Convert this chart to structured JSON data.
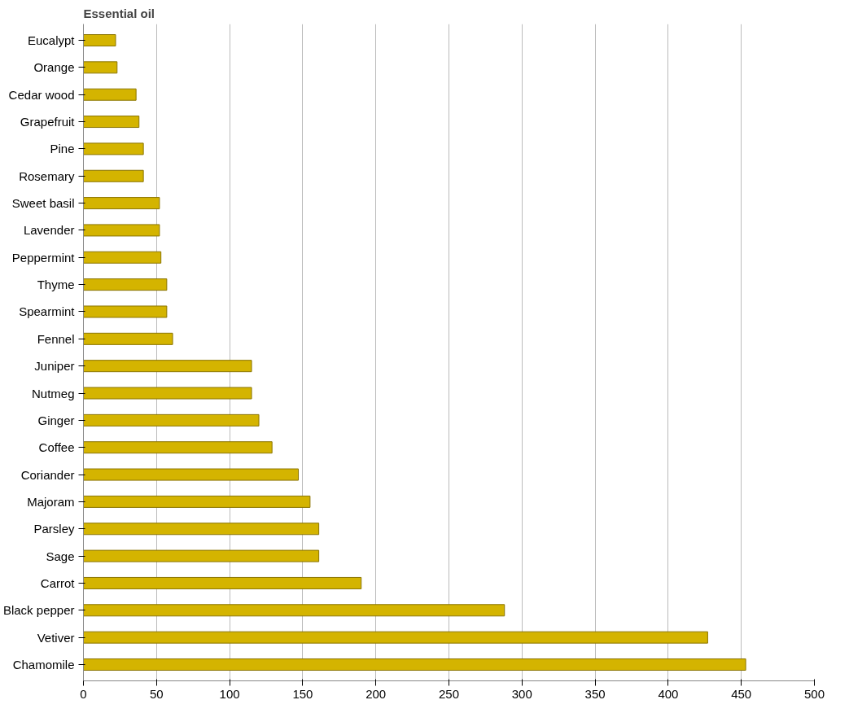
{
  "chart_data": {
    "type": "bar",
    "orientation": "horizontal",
    "ylabel": "Essential oil",
    "categories": [
      "Eucalypt",
      "Orange",
      "Cedar wood",
      "Grapefruit",
      "Pine",
      "Rosemary",
      "Sweet basil",
      "Lavender",
      "Peppermint",
      "Thyme",
      "Spearmint",
      "Fennel",
      "Juniper",
      "Nutmeg",
      "Ginger",
      "Coffee",
      "Coriander",
      "Majoram",
      "Parsley",
      "Sage",
      "Carrot",
      "Black pepper",
      "Vetiver",
      "Chamomile"
    ],
    "values": [
      22,
      23,
      36,
      38,
      41,
      41,
      52,
      52,
      53,
      57,
      57,
      61,
      115,
      115,
      120,
      129,
      147,
      155,
      161,
      161,
      190,
      288,
      427,
      453
    ],
    "color": "#d4b400",
    "xlim": [
      0,
      500
    ],
    "xticks": [
      0,
      50,
      100,
      150,
      200,
      250,
      300,
      350,
      400,
      450,
      500
    ],
    "grid": "x"
  }
}
